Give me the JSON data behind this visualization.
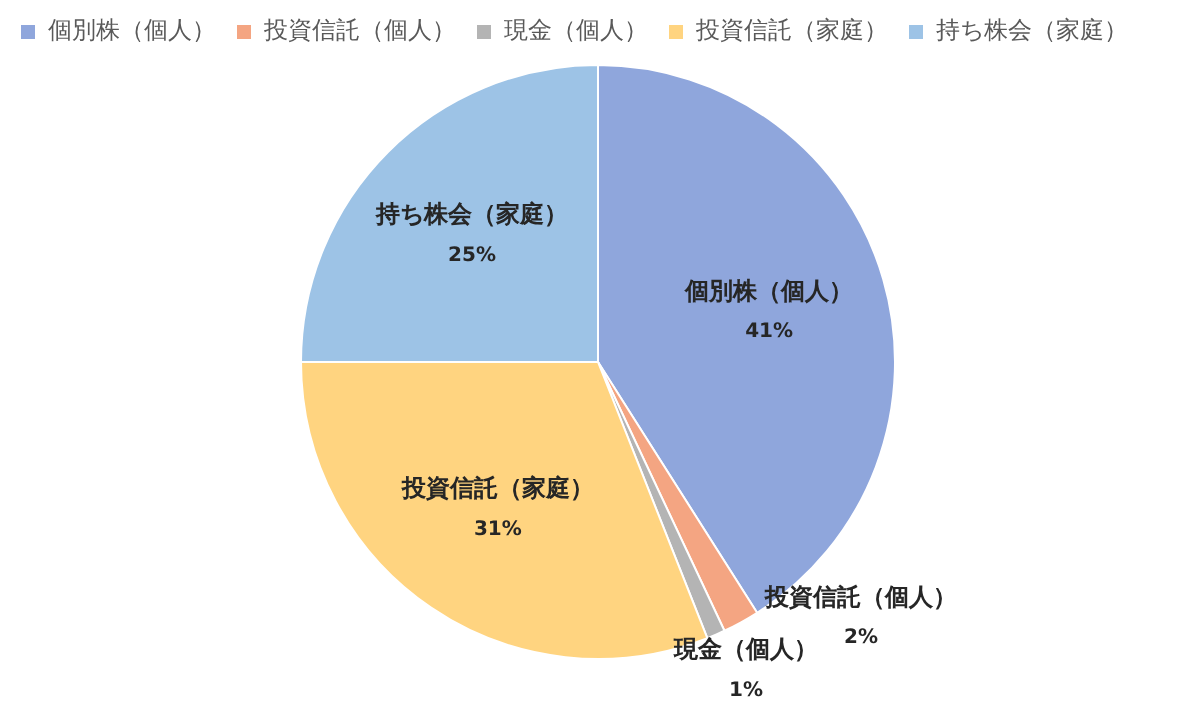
{
  "chart_data": {
    "type": "pie",
    "categories": [
      "個別株（個人）",
      "投資信託（個人）",
      "現金（個人）",
      "投資信託（家庭）",
      "持ち株会（家庭）"
    ],
    "values": [
      41,
      2,
      1,
      31,
      25
    ],
    "colors": [
      "#8fa6dc",
      "#f4a582",
      "#b4b4b4",
      "#ffd480",
      "#9dc3e6"
    ],
    "value_labels": [
      "41%",
      "2%",
      "1%",
      "31%",
      "25%"
    ],
    "legend": "top left"
  }
}
